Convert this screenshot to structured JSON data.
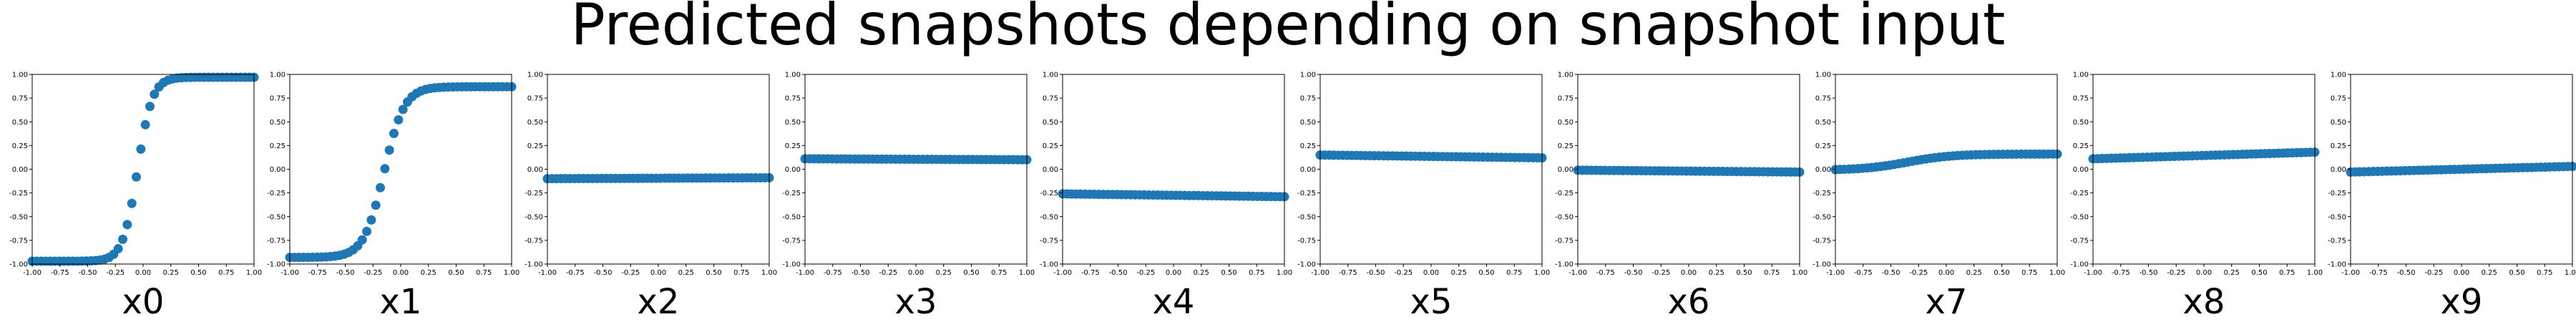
{
  "figure": {
    "title": "Predicted snapshots depending on snapshot input",
    "marker_color": "#1f77b4"
  },
  "chart_data": {
    "type": "scatter",
    "x_range": [
      -1.0,
      1.0
    ],
    "ylim": [
      -1.0,
      1.0
    ],
    "grid": false,
    "x_ticks": [
      "-1.00",
      "-0.75",
      "-0.50",
      "-0.25",
      "0.00",
      "0.25",
      "0.50",
      "0.75",
      "1.00"
    ],
    "y_ticks": [
      "-1.00",
      "-0.75",
      "-0.50",
      "-0.25",
      "0.00",
      "0.25",
      "0.50",
      "0.75",
      "1.00"
    ],
    "n_points": 50,
    "panels": [
      {
        "label": "x0",
        "shape": "tanh",
        "amplitude": 0.97,
        "steepness": 7.5,
        "center": -0.05,
        "offset": 0.0
      },
      {
        "label": "x1",
        "shape": "tanh",
        "amplitude": 0.9,
        "steepness": 5.5,
        "center": -0.15,
        "offset": -0.03
      },
      {
        "label": "x2",
        "shape": "line",
        "y_start": -0.1,
        "y_end": -0.09
      },
      {
        "label": "x3",
        "shape": "line",
        "y_start": 0.11,
        "y_end": 0.1
      },
      {
        "label": "x4",
        "shape": "line",
        "y_start": -0.26,
        "y_end": -0.29
      },
      {
        "label": "x5",
        "shape": "line",
        "y_start": 0.15,
        "y_end": 0.12
      },
      {
        "label": "x6",
        "shape": "line",
        "y_start": -0.01,
        "y_end": -0.03
      },
      {
        "label": "x7",
        "shape": "tanh",
        "amplitude": 0.085,
        "steepness": 2.5,
        "center": -0.35,
        "offset": 0.075
      },
      {
        "label": "x8",
        "shape": "line",
        "y_start": 0.11,
        "y_end": 0.18
      },
      {
        "label": "x9",
        "shape": "line",
        "y_start": -0.03,
        "y_end": 0.03
      }
    ]
  }
}
